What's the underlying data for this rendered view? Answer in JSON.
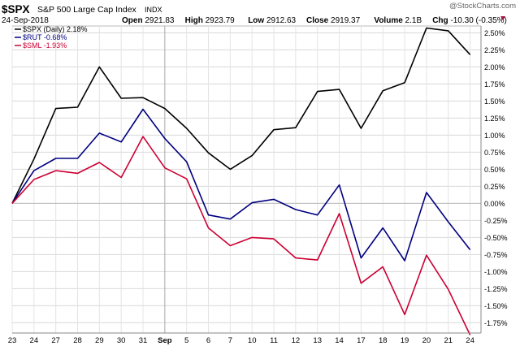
{
  "header": {
    "symbol": "$SPX",
    "name": "S&P 500 Large Cap Index",
    "exchange": "INDX",
    "date": "24-Sep-2018",
    "watermark": "@StockCharts.com",
    "stats": [
      {
        "label": "Open",
        "value": "2921.83"
      },
      {
        "label": "High",
        "value": "2923.79"
      },
      {
        "label": "Low",
        "value": "2912.63"
      },
      {
        "label": "Close",
        "value": "2919.37"
      },
      {
        "label": "Volume",
        "value": "2.1B"
      },
      {
        "label": "Chg",
        "value": "-10.30 (-0.35%)"
      }
    ],
    "change_arrow_color": "#a0153e"
  },
  "chart_data": {
    "type": "line",
    "x": [
      "23",
      "24",
      "27",
      "28",
      "29",
      "30",
      "31",
      "Sep",
      "5",
      "6",
      "7",
      "10",
      "11",
      "12",
      "13",
      "14",
      "17",
      "18",
      "19",
      "20",
      "21",
      "24"
    ],
    "ylim": [
      -1.9,
      2.6
    ],
    "yticks": [
      "2.50%",
      "2.25%",
      "2.00%",
      "1.75%",
      "1.50%",
      "1.25%",
      "1.00%",
      "0.75%",
      "0.50%",
      "0.25%",
      "0.00%",
      "-0.25%",
      "-0.50%",
      "-0.75%",
      "-1.00%",
      "-1.25%",
      "-1.50%",
      "-1.75%"
    ],
    "ytick_values": [
      2.5,
      2.25,
      2.0,
      1.75,
      1.5,
      1.25,
      1.0,
      0.75,
      0.5,
      0.25,
      0.0,
      -0.25,
      -0.5,
      -0.75,
      -1.0,
      -1.25,
      -1.5,
      -1.75
    ],
    "series": [
      {
        "legend": "$SPX (Daily) 2.18%",
        "color": "#000000",
        "values": [
          0.0,
          0.65,
          1.39,
          1.41,
          2.0,
          1.54,
          1.55,
          1.39,
          1.1,
          0.74,
          0.5,
          0.7,
          1.08,
          1.11,
          1.64,
          1.67,
          1.1,
          1.65,
          1.77,
          2.57,
          2.53,
          2.18
        ]
      },
      {
        "legend": "$RUT -0.68%",
        "color": "#000080",
        "values": [
          0.0,
          0.48,
          0.66,
          0.66,
          1.03,
          0.9,
          1.38,
          0.95,
          0.61,
          -0.17,
          -0.23,
          0.01,
          0.06,
          -0.09,
          -0.17,
          0.27,
          -0.8,
          -0.36,
          -0.84,
          0.16,
          -0.27,
          -0.68
        ]
      },
      {
        "legend": "$SML -1.93%",
        "color": "#cc0033",
        "values": [
          0.0,
          0.35,
          0.48,
          0.44,
          0.6,
          0.38,
          0.98,
          0.52,
          0.36,
          -0.36,
          -0.62,
          -0.5,
          -0.52,
          -0.8,
          -0.83,
          -0.15,
          -1.17,
          -0.93,
          -1.63,
          -0.76,
          -1.26,
          -1.93
        ]
      }
    ],
    "grid": true,
    "grid_vertical_at": "Sep",
    "legend_position": "top-left"
  }
}
